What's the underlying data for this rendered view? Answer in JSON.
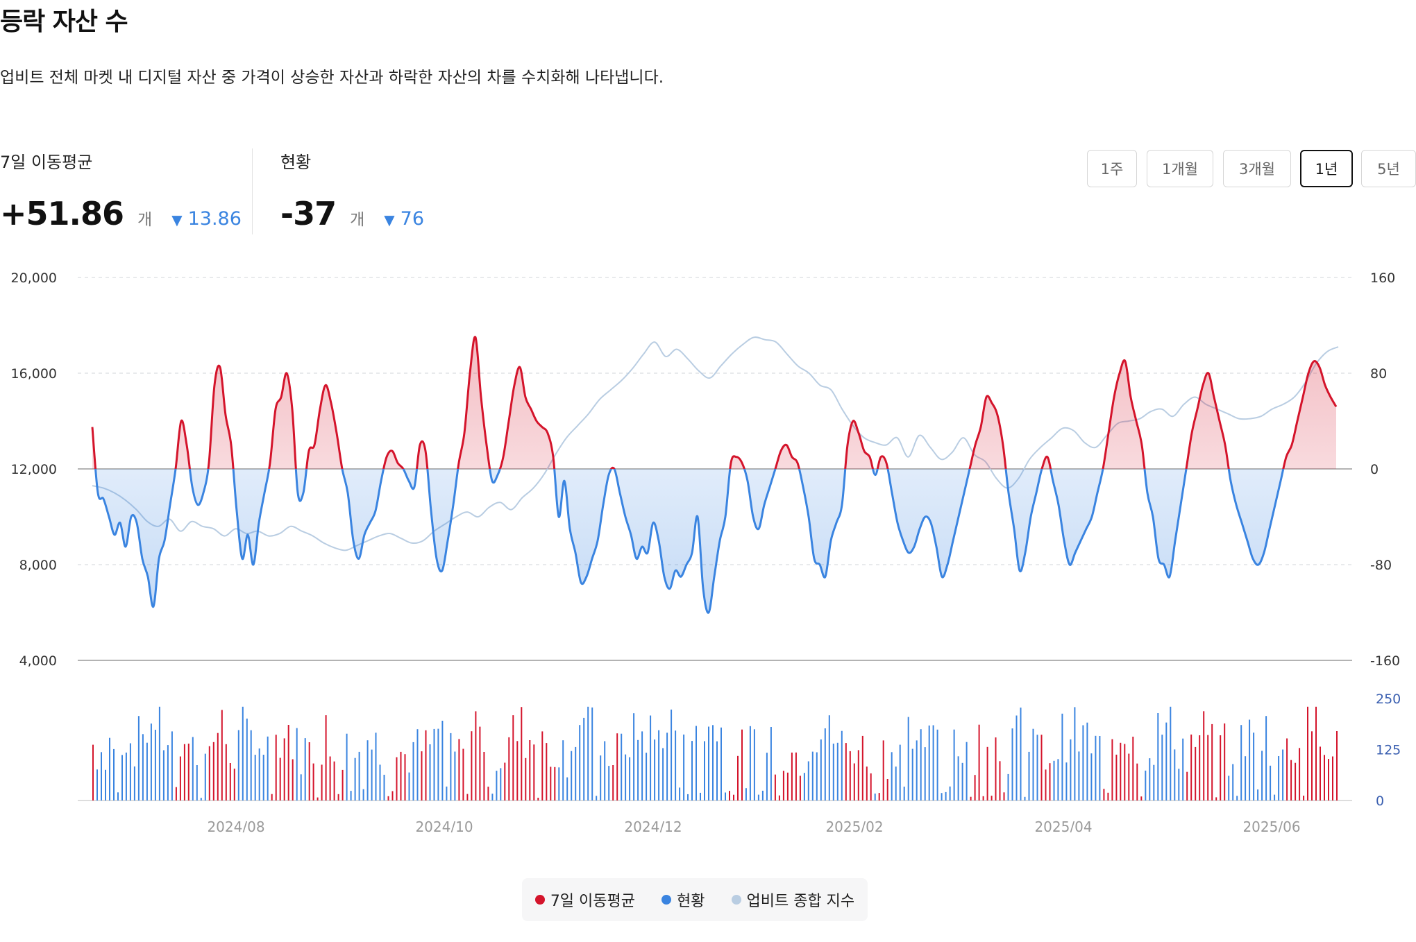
{
  "header": {
    "title": "등락 자산 수",
    "description": "업비트 전체 마켓 내 디지털 자산 중 가격이 상승한 자산과 하락한 자산의 차를 수치화해 나타냅니다."
  },
  "stats": {
    "ma7": {
      "label": "7일 이동평균",
      "value": "+51.86",
      "unit": "개",
      "delta_symbol": "▼",
      "delta": "13.86"
    },
    "current": {
      "label": "현황",
      "value": "-37",
      "unit": "개",
      "delta_symbol": "▼",
      "delta": "76"
    }
  },
  "ranges": {
    "options": [
      "1주",
      "1개월",
      "3개월",
      "1년",
      "5년"
    ],
    "selected": "1년"
  },
  "legend": {
    "ma7": "7일 이동평균",
    "current": "현황",
    "index": "업비트 종합 지수"
  },
  "colors": {
    "up": "#d4142b",
    "down": "#3a84e0",
    "index": "#b9cde2",
    "accent": "#3a84e0"
  },
  "chart_data": {
    "type": "line",
    "title": "등락 자산 수",
    "x_ticks": [
      "2024/08",
      "2024/10",
      "2024/12",
      "2025/02",
      "2025/04",
      "2025/06"
    ],
    "left_axis": {
      "ticks": [
        "20,000",
        "16,000",
        "12,000",
        "8,000",
        "4,000"
      ],
      "range": [
        4000,
        20000
      ],
      "series": "업비트 종합 지수"
    },
    "right_axis": {
      "ticks": [
        "160",
        "80",
        "0",
        "-80",
        "-160"
      ],
      "range": [
        -160,
        160
      ],
      "series": "7일 이동평균"
    },
    "volume_axis": {
      "ticks": [
        "250",
        "125",
        "0"
      ],
      "range": [
        0,
        250
      ]
    },
    "ma7_series": [
      35,
      -20,
      -25,
      -40,
      -55,
      -45,
      -65,
      -40,
      -45,
      -75,
      -90,
      -115,
      -75,
      -60,
      -30,
      0,
      40,
      20,
      -15,
      -30,
      -20,
      5,
      70,
      85,
      45,
      20,
      -35,
      -75,
      -55,
      -80,
      -45,
      -20,
      5,
      50,
      60,
      80,
      50,
      -20,
      -20,
      15,
      20,
      50,
      70,
      55,
      30,
      0,
      -20,
      -60,
      -75,
      -55,
      -45,
      -35,
      -10,
      10,
      15,
      5,
      0,
      -10,
      -15,
      20,
      15,
      -35,
      -75,
      -85,
      -60,
      -30,
      5,
      30,
      80,
      110,
      60,
      20,
      -10,
      -5,
      10,
      40,
      70,
      85,
      60,
      50,
      40,
      35,
      30,
      10,
      -40,
      -10,
      -50,
      -70,
      -95,
      -90,
      -75,
      -60,
      -30,
      -5,
      0,
      -20,
      -40,
      -55,
      -75,
      -65,
      -70,
      -45,
      -60,
      -90,
      -100,
      -85,
      -90,
      -80,
      -70,
      -40,
      -100,
      -120,
      -90,
      -60,
      -40,
      5,
      10,
      5,
      -10,
      -40,
      -50,
      -30,
      -15,
      0,
      15,
      20,
      10,
      5,
      -15,
      -40,
      -75,
      -80,
      -90,
      -60,
      -45,
      -30,
      20,
      40,
      30,
      15,
      10,
      -5,
      10,
      5,
      -20,
      -45,
      -60,
      -70,
      -65,
      -50,
      -40,
      -45,
      -65,
      -90,
      -80,
      -60,
      -40,
      -20,
      0,
      20,
      35,
      60,
      55,
      45,
      20,
      -20,
      -50,
      -85,
      -70,
      -40,
      -20,
      0,
      10,
      -10,
      -30,
      -60,
      -80,
      -70,
      -60,
      -50,
      -40,
      -20,
      0,
      30,
      60,
      80,
      90,
      60,
      40,
      20,
      -20,
      -40,
      -75,
      -80,
      -90,
      -60,
      -30,
      0,
      30,
      50,
      70,
      80,
      60,
      40,
      20,
      -10,
      -30,
      -45,
      -60,
      -75,
      -80,
      -70,
      -50,
      -30,
      -10,
      10,
      20,
      40,
      60,
      80,
      90,
      85,
      70,
      60,
      52
    ],
    "index_series": [
      11300,
      11200,
      11000,
      10700,
      10300,
      9800,
      9600,
      9900,
      9400,
      9800,
      9600,
      9500,
      9200,
      9500,
      9300,
      9400,
      9200,
      9300,
      9600,
      9400,
      9200,
      8900,
      8700,
      8600,
      8800,
      9000,
      9200,
      9300,
      9100,
      8900,
      9000,
      9400,
      9700,
      10000,
      10200,
      10000,
      10400,
      10600,
      10300,
      10800,
      11200,
      11800,
      12600,
      13300,
      13800,
      14300,
      14900,
      15300,
      15700,
      16200,
      16800,
      17300,
      16700,
      17000,
      16600,
      16100,
      15800,
      16300,
      16800,
      17200,
      17500,
      17400,
      17300,
      16800,
      16300,
      16000,
      15500,
      15300,
      14500,
      13800,
      13300,
      13100,
      13000,
      13300,
      12500,
      13400,
      12900,
      12400,
      12700,
      13300,
      12600,
      12300,
      11600,
      11200,
      11600,
      12400,
      12900,
      13300,
      13700,
      13600,
      13100,
      12900,
      13400,
      13900,
      14000,
      14100,
      14400,
      14500,
      14200,
      14700,
      15000,
      14700,
      14500,
      14300,
      14100,
      14100,
      14200,
      14500,
      14700,
      15000,
      15600,
      16400,
      16900,
      17100
    ]
  }
}
